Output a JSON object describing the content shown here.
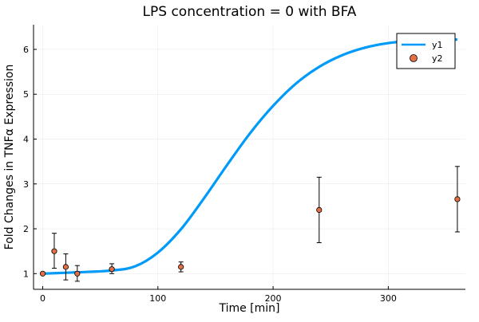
{
  "chart_data": {
    "type": "line",
    "title": "LPS concentration = 0 with BFA",
    "xlabel": "Time [min]",
    "ylabel": "Fold Changes in TNFα Expression",
    "xlim": [
      -8,
      367
    ],
    "ylim": [
      0.65,
      6.55
    ],
    "x_ticks": [
      0,
      100,
      200,
      300
    ],
    "y_ticks": [
      1,
      2,
      3,
      4,
      5,
      6
    ],
    "grid": true,
    "legend_position": "top-right",
    "series": [
      {
        "name": "y1",
        "kind": "line",
        "color": "#009af9",
        "x": [
          0,
          20,
          40,
          60,
          80,
          100,
          120,
          140,
          160,
          180,
          200,
          220,
          240,
          260,
          280,
          300,
          320,
          340,
          360
        ],
        "y": [
          1.0,
          1.02,
          1.04,
          1.07,
          1.16,
          1.47,
          1.99,
          2.68,
          3.42,
          4.13,
          4.74,
          5.24,
          5.61,
          5.87,
          6.04,
          6.14,
          6.19,
          6.21,
          6.22
        ]
      },
      {
        "name": "y2",
        "kind": "scatter",
        "color": "#e26f46",
        "x": [
          0,
          10,
          20,
          30,
          60,
          120,
          240,
          360
        ],
        "y": [
          1.0,
          1.5,
          1.15,
          1.0,
          1.1,
          1.15,
          2.42,
          2.66
        ],
        "err_low": [
          1.0,
          1.12,
          0.86,
          0.83,
          1.0,
          1.04,
          1.69,
          1.93
        ],
        "err_high": [
          1.0,
          1.9,
          1.44,
          1.18,
          1.22,
          1.26,
          3.15,
          3.39
        ]
      }
    ]
  }
}
